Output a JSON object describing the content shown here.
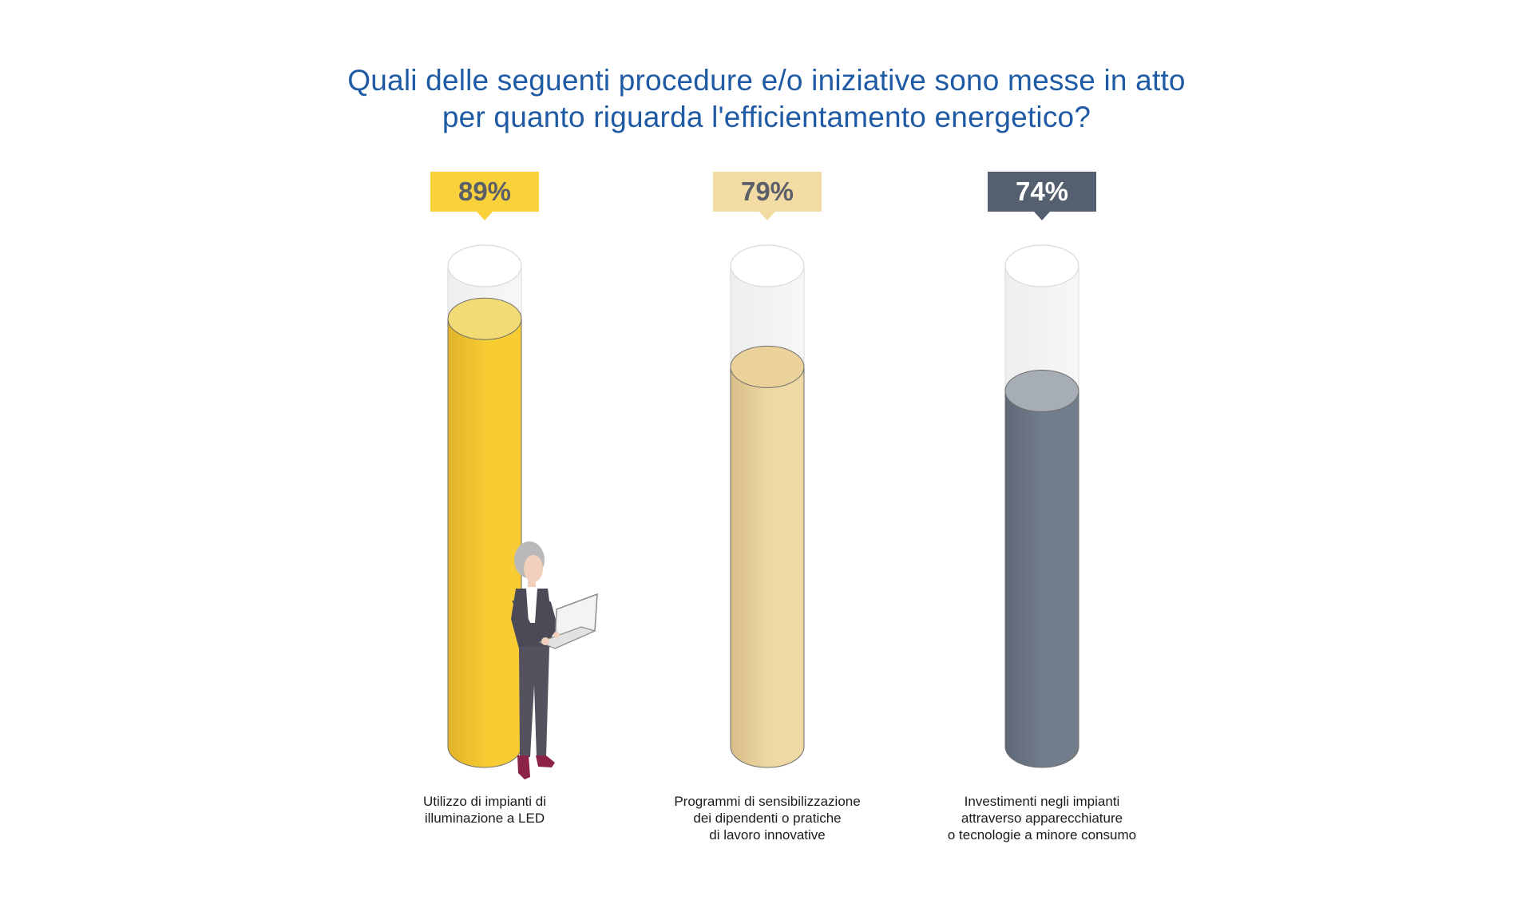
{
  "chart_data": {
    "type": "bar",
    "title_lines": [
      "Quali delle seguenti  procedure e/o iniziative sono  messe in atto",
      "per quanto riguarda l'efficientamento energetico?"
    ],
    "categories": [
      [
        "Utilizzo di impianti di",
        "illuminazione a LED"
      ],
      [
        "Programmi di sensibilizzazione",
        "dei dipendenti o pratiche",
        "di lavoro innovative"
      ],
      [
        "Investimenti negli impianti",
        "attraverso apparecchiature",
        "o tecnologie a minore consumo"
      ]
    ],
    "values": [
      89,
      79,
      74
    ],
    "value_labels": [
      "89%",
      "79%",
      "74%"
    ],
    "ylim": [
      0,
      100
    ],
    "colors": {
      "bars": [
        "#f7cd33",
        "#eed9a4",
        "#737e8d"
      ],
      "bars_dark": [
        "#e2b32a",
        "#d9be88",
        "#5f6877"
      ],
      "tops": [
        "#f2da74",
        "#ead29a",
        "#a7adb5"
      ],
      "badges": [
        "#f9d13a",
        "#f3dca4",
        "#545f6f"
      ],
      "badge_text": [
        "#5a5f6a",
        "#5a5f6a",
        "#ffffff"
      ],
      "title": "#1f5aa5"
    }
  }
}
